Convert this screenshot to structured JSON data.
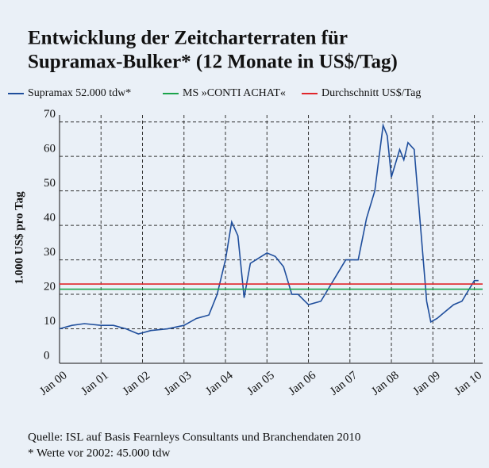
{
  "chart_data": {
    "type": "line",
    "title": "Entwicklung der Zeitcharterraten für",
    "subtitle": "Supramax-Bulker* (12 Monate in US$/Tag)",
    "y_label": "1.000 US$ pro Tag",
    "source": "Quelle: ISL auf Basis Fearnleys Consultants und Branchendaten 2010",
    "note": "* Werte vor 2002: 45.000 tdw",
    "xlim": [
      2000,
      2010.2
    ],
    "xticks": [
      {
        "value": 2000,
        "label": "Jan 00"
      },
      {
        "value": 2001,
        "label": "Jan 01"
      },
      {
        "value": 2002,
        "label": "Jan 02"
      },
      {
        "value": 2003,
        "label": "Jan 03"
      },
      {
        "value": 2004,
        "label": "Jan 04"
      },
      {
        "value": 2005,
        "label": "Jan 05"
      },
      {
        "value": 2006,
        "label": "Jan 06"
      },
      {
        "value": 2007,
        "label": "Jan 07"
      },
      {
        "value": 2008,
        "label": "Jan 08"
      },
      {
        "value": 2009,
        "label": "Jan 09"
      },
      {
        "value": 2010,
        "label": "Jan 10"
      }
    ],
    "ylim": [
      0,
      72
    ],
    "yticks": [
      0,
      10,
      20,
      30,
      40,
      50,
      60,
      70
    ],
    "grid": true,
    "series": [
      {
        "name": "Supramax 52.000 tdw*",
        "color": "#1f4e9c",
        "x": [
          2000.0,
          2000.3,
          2000.6,
          2001.0,
          2001.3,
          2001.6,
          2001.9,
          2002.2,
          2002.6,
          2003.0,
          2003.3,
          2003.6,
          2003.8,
          2004.0,
          2004.15,
          2004.3,
          2004.45,
          2004.6,
          2004.8,
          2005.0,
          2005.2,
          2005.4,
          2005.6,
          2005.75,
          2006.0,
          2006.3,
          2006.6,
          2006.9,
          2007.2,
          2007.4,
          2007.6,
          2007.8,
          2007.9,
          2008.0,
          2008.2,
          2008.3,
          2008.4,
          2008.55,
          2008.7,
          2008.85,
          2008.95,
          2009.1,
          2009.3,
          2009.5,
          2009.7,
          2009.9,
          2010.0,
          2010.1
        ],
        "values": [
          10,
          11,
          11.5,
          11,
          11,
          10,
          8.5,
          9.5,
          10,
          11,
          13,
          14,
          20,
          30,
          41,
          37,
          19,
          29,
          30.5,
          32,
          31,
          28,
          20,
          20,
          17,
          18,
          24,
          30,
          30,
          42,
          50,
          69,
          66,
          54,
          62,
          59,
          64,
          62,
          40,
          18,
          12,
          13,
          15,
          17,
          18,
          22,
          24,
          24
        ]
      },
      {
        "name": "MS »CONTI ACHAT«",
        "color": "#1aa34a",
        "x": [
          2000.0,
          2010.2
        ],
        "values": [
          21.5,
          21.5
        ]
      },
      {
        "name": "Durchschnitt US$/Tag",
        "color": "#e0262b",
        "x": [
          2000.0,
          2010.2
        ],
        "values": [
          23,
          23
        ]
      }
    ]
  }
}
